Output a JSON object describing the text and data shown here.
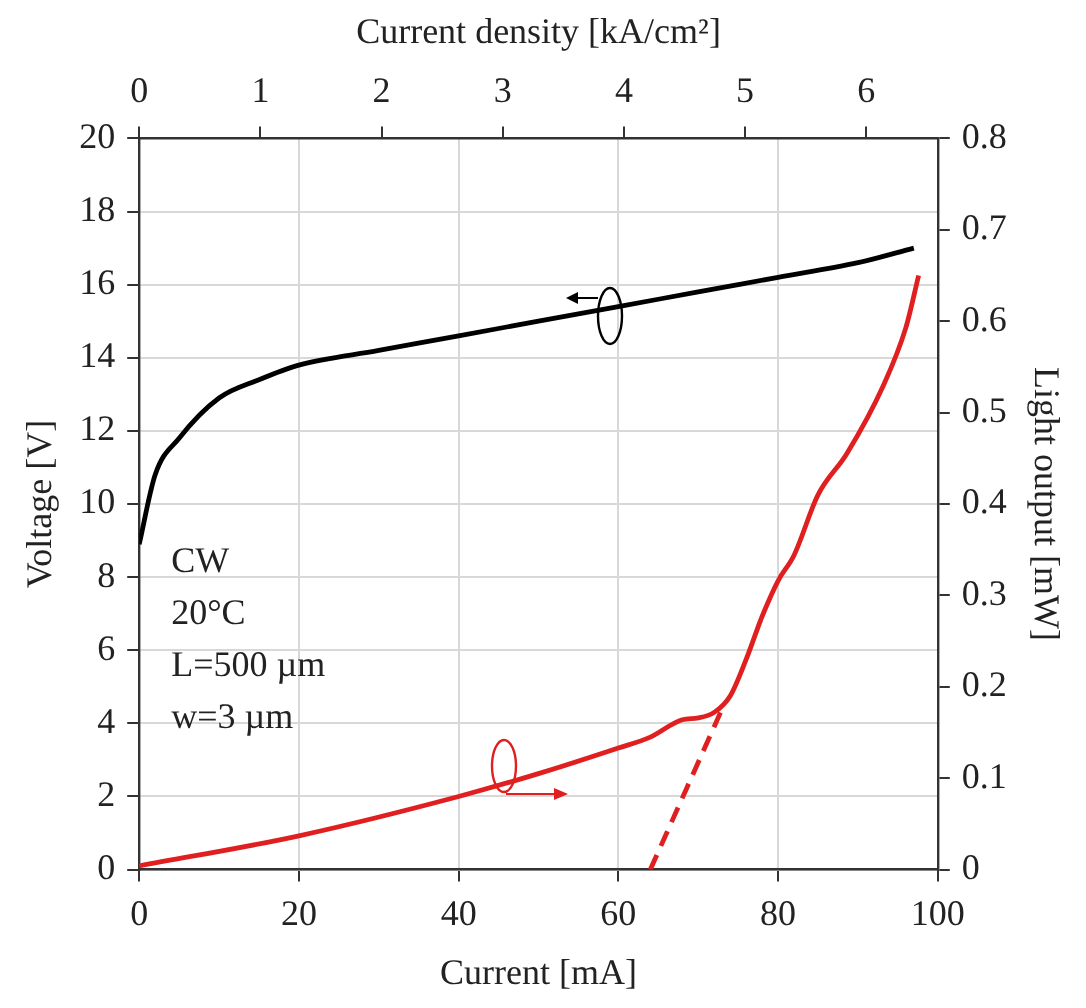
{
  "chart_data": {
    "type": "line",
    "xlabel": "Current [mA]",
    "ylabel": "Voltage [V]",
    "y2label": "Light output [mW]",
    "x2label": "Current density [kA/cm²]",
    "xlim": [
      0,
      100
    ],
    "xticks": [
      0,
      20,
      40,
      60,
      80,
      100
    ],
    "x2lim": [
      0,
      6.59
    ],
    "x2ticks": [
      0,
      1,
      2,
      3,
      4,
      5,
      6
    ],
    "ylim": [
      0,
      20
    ],
    "yticks": [
      0,
      2,
      4,
      6,
      8,
      10,
      12,
      14,
      16,
      18,
      20
    ],
    "y2lim": [
      0,
      0.8
    ],
    "y2ticks": [
      0,
      0.1,
      0.2,
      0.3,
      0.4,
      0.5,
      0.6,
      0.7,
      0.8
    ],
    "grid": true,
    "legend": false,
    "marker": "none",
    "annotations": [
      "CW",
      "20°C",
      "L=500 µm",
      "w=3 µm"
    ],
    "series": [
      {
        "color": "#000000",
        "axis": "y",
        "line_style": "solid",
        "x": [
          0,
          2,
          5,
          10,
          15,
          20,
          30,
          40,
          50,
          60,
          70,
          80,
          90,
          97
        ],
        "values": [
          8.9,
          10.8,
          11.8,
          12.9,
          13.4,
          13.8,
          14.2,
          14.6,
          15.0,
          15.4,
          15.8,
          16.2,
          16.6,
          17.0
        ]
      },
      {
        "color": "#e02020",
        "axis": "y2",
        "line_style": "solid",
        "x": [
          0,
          20,
          40,
          50,
          60,
          64,
          68,
          70,
          72,
          74,
          76,
          78,
          80,
          82,
          85,
          88.6,
          93.2,
          96,
          97.6
        ],
        "values": [
          0.004,
          0.037,
          0.08,
          0.105,
          0.133,
          0.145,
          0.164,
          0.166,
          0.172,
          0.19,
          0.23,
          0.277,
          0.316,
          0.344,
          0.41,
          0.455,
          0.53,
          0.593,
          0.65
        ]
      },
      {
        "color": "#e02020",
        "axis": "y2",
        "line_style": "dashed",
        "x": [
          64,
          73
        ],
        "values": [
          0,
          0.176
        ]
      }
    ]
  }
}
